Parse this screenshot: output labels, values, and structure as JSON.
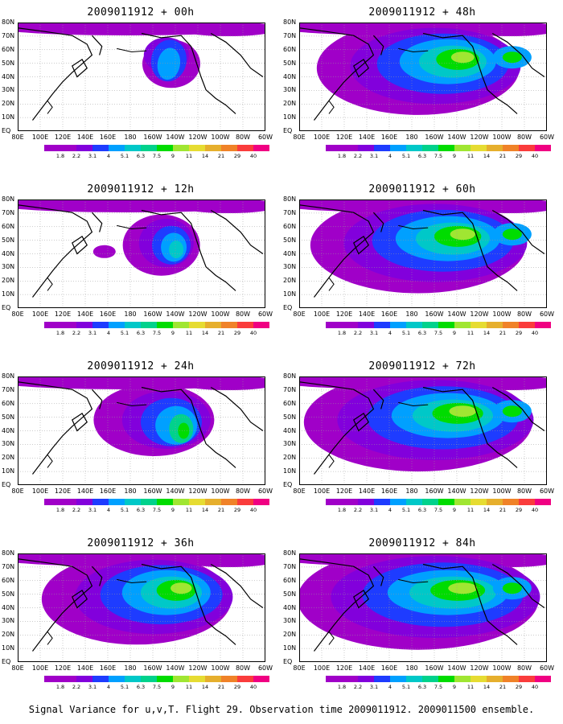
{
  "panels": [
    {
      "title": "2009011912 + 00h",
      "lead": "00h"
    },
    {
      "title": "2009011912 + 48h",
      "lead": "48h"
    },
    {
      "title": "2009011912 + 12h",
      "lead": "12h"
    },
    {
      "title": "2009011912 + 60h",
      "lead": "60h"
    },
    {
      "title": "2009011912 + 24h",
      "lead": "24h"
    },
    {
      "title": "2009011912 + 72h",
      "lead": "72h"
    },
    {
      "title": "2009011912 + 36h",
      "lead": "36h"
    },
    {
      "title": "2009011912 + 84h",
      "lead": "84h"
    }
  ],
  "y_axis_labels": [
    "80N",
    "70N",
    "60N",
    "50N",
    "40N",
    "30N",
    "20N",
    "10N",
    "EQ"
  ],
  "x_axis_labels": [
    "80E",
    "100E",
    "120E",
    "140E",
    "160E",
    "180",
    "160W",
    "140W",
    "120W",
    "100W",
    "80W",
    "60W"
  ],
  "colorbar": {
    "labels": [
      "1.8",
      "2.2",
      "3.1",
      "4",
      "5.1",
      "6.3",
      "7.5",
      "9",
      "11",
      "14",
      "21",
      "29",
      "40"
    ],
    "colors": [
      "#a000c8",
      "#8200dc",
      "#1e3cff",
      "#00a0ff",
      "#00c8c8",
      "#00d28c",
      "#00dc00",
      "#a0e632",
      "#e6dc32",
      "#e6af2d",
      "#f08228",
      "#fa3c3c",
      "#f00082"
    ]
  },
  "caption": "Signal Variance for u,v,T. Flight 29. Observation time 2009011912. 2009011500 ensemble."
}
